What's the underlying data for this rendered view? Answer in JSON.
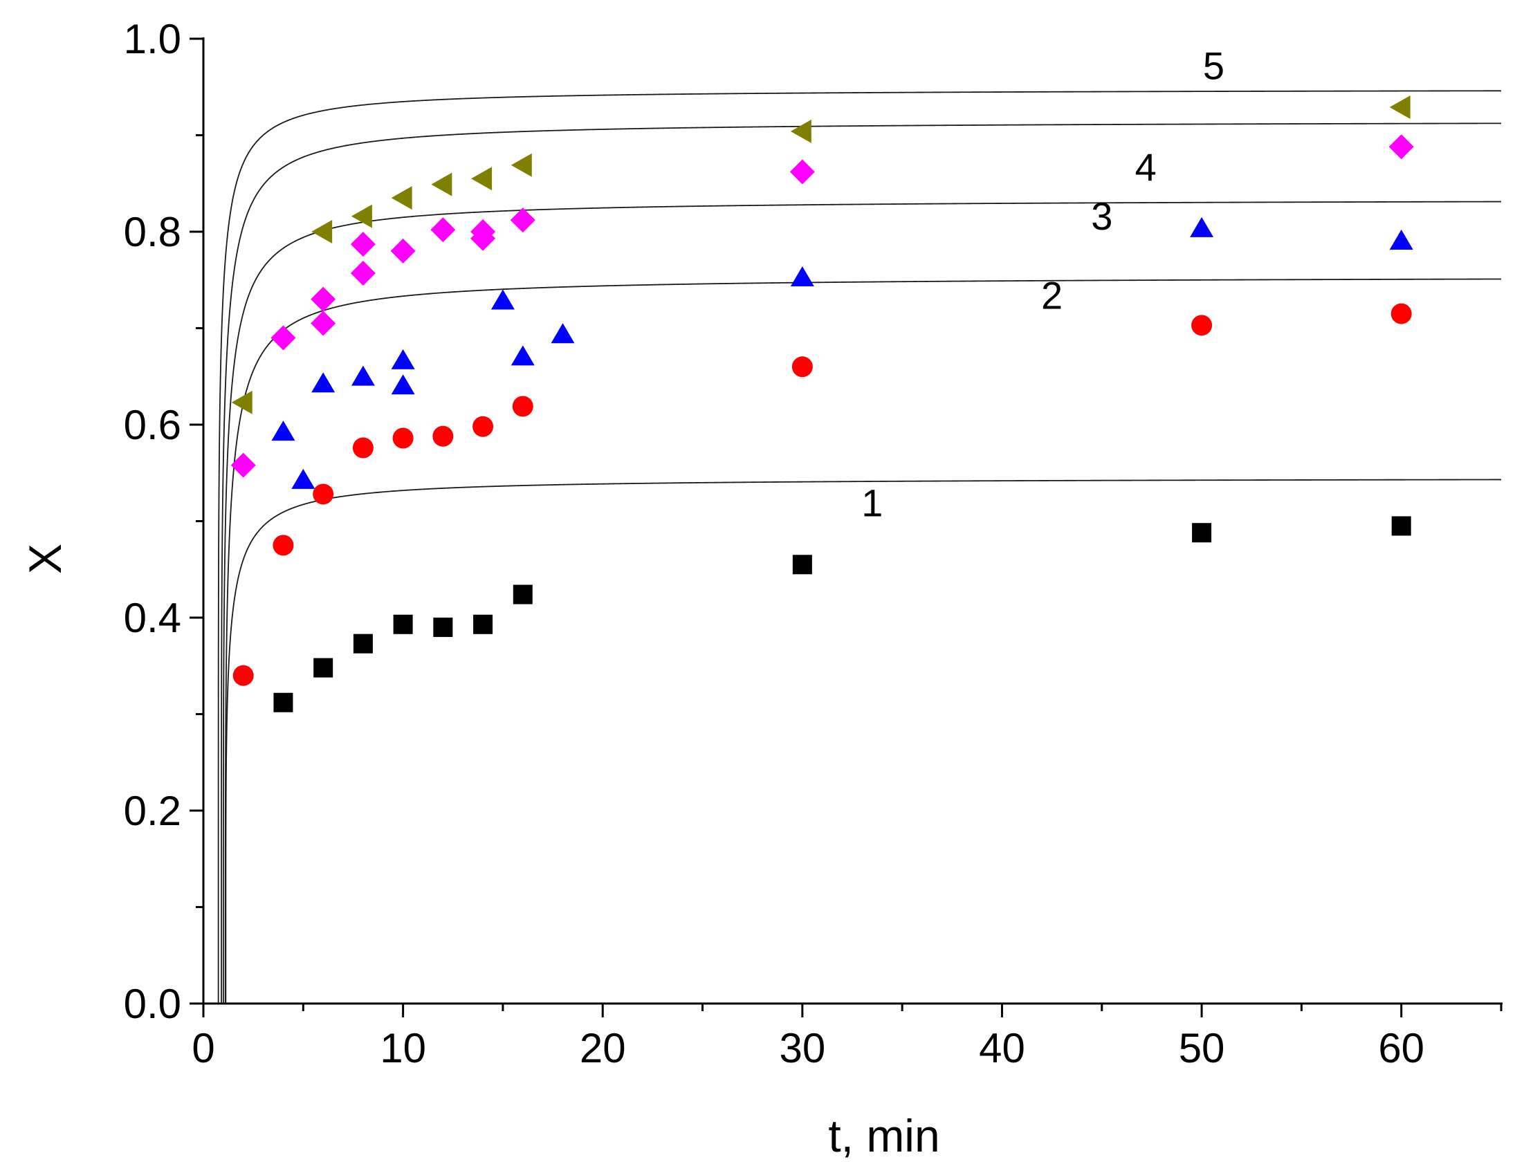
{
  "chart_data": {
    "type": "scatter",
    "title": "",
    "xlabel": "t, min",
    "ylabel": "X",
    "xlim": [
      0,
      65
    ],
    "ylim": [
      0,
      1.0
    ],
    "x_ticks": [
      0,
      10,
      20,
      30,
      40,
      50,
      60
    ],
    "x_tick_labels": [
      "0",
      "10",
      "20",
      "30",
      "40",
      "50",
      "60"
    ],
    "y_ticks": [
      0,
      0.2,
      0.4,
      0.6,
      0.8,
      1.0
    ],
    "y_tick_labels": [
      "0.0",
      "0.2",
      "0.4",
      "0.6",
      "0.8",
      "1.0"
    ],
    "grid": false,
    "legend": "none",
    "series": [
      {
        "name": "1",
        "marker": "square",
        "color": "#000000",
        "x": [
          4,
          6,
          8,
          10,
          12,
          14,
          16,
          30,
          50,
          60
        ],
        "y": [
          0.312,
          0.348,
          0.373,
          0.393,
          0.39,
          0.393,
          0.424,
          0.455,
          0.488,
          0.495
        ],
        "fit": {
          "a": 0.545,
          "t0": 1.12,
          "k": 0.206
        },
        "label": {
          "text": "1",
          "x": 33.5,
          "y": 0.505
        }
      },
      {
        "name": "2",
        "marker": "circle",
        "color": "#ff0000",
        "x": [
          2,
          4,
          6,
          8,
          10,
          12,
          14,
          16,
          30,
          50,
          60
        ],
        "y": [
          0.34,
          0.475,
          0.528,
          0.576,
          0.586,
          0.588,
          0.598,
          0.619,
          0.66,
          0.703,
          0.715
        ],
        "fit": {
          "a": 0.754,
          "t0": 1.1,
          "k": 0.24
        },
        "label": {
          "text": "2",
          "x": 42.5,
          "y": 0.72
        }
      },
      {
        "name": "3",
        "marker": "triangle-up",
        "color": "#0000ff",
        "x": [
          4,
          5,
          6,
          8,
          10,
          10,
          15,
          16,
          18,
          30,
          50,
          60
        ],
        "y": [
          0.592,
          0.542,
          0.642,
          0.649,
          0.64,
          0.666,
          0.728,
          0.67,
          0.693,
          0.752,
          0.803,
          0.79
        ],
        "fit": {
          "a": 0.834,
          "t0": 1.0,
          "k": 0.22
        },
        "label": {
          "text": "3",
          "x": 45.0,
          "y": 0.802
        }
      },
      {
        "name": "4",
        "marker": "diamond",
        "color": "#ff00ff",
        "x": [
          2,
          4,
          6,
          6,
          8,
          8,
          10,
          12,
          14,
          14,
          16,
          30,
          60
        ],
        "y": [
          0.558,
          0.69,
          0.73,
          0.705,
          0.757,
          0.787,
          0.78,
          0.802,
          0.793,
          0.8,
          0.812,
          0.862,
          0.888
        ],
        "fit": {
          "a": 0.915,
          "t0": 0.9,
          "k": 0.212
        },
        "label": {
          "text": "4",
          "x": 47.2,
          "y": 0.853
        }
      },
      {
        "name": "5",
        "marker": "triangle-left",
        "color": "#808000",
        "x": [
          2,
          6,
          8,
          10,
          12,
          14,
          16,
          30,
          60
        ],
        "y": [
          0.623,
          0.8,
          0.816,
          0.835,
          0.849,
          0.855,
          0.869,
          0.904,
          0.929
        ],
        "fit": {
          "a": 0.948,
          "t0": 0.75,
          "k": 0.18
        },
        "label": {
          "text": "5",
          "x": 50.6,
          "y": 0.958
        }
      }
    ]
  }
}
